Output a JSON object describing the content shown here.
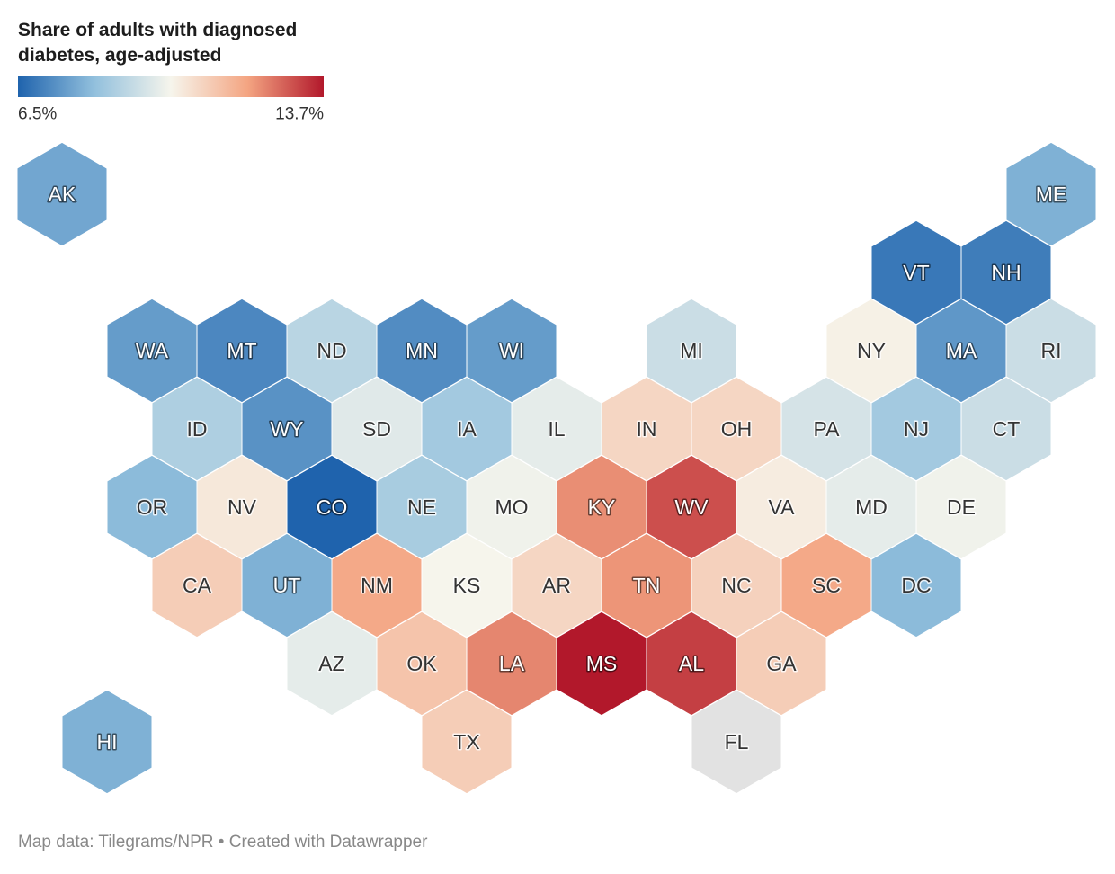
{
  "chart_data": {
    "type": "hex-map",
    "title": "Share of adults with diagnosed diabetes, age-adjusted",
    "footer": "Map data: Tilegrams/NPR • Created with Datawrapper",
    "colorscale": [
      "#1f63ad",
      "#92c0dd",
      "#f6f5ec",
      "#f4a582",
      "#b2182b"
    ],
    "missing_color": "#e2e2e2",
    "colorscale_range": [
      {
        "value": 6.5,
        "label": "6.5%"
      },
      {
        "value": 13.7,
        "label": "13.7%"
      }
    ],
    "states": [
      {
        "name": "AK",
        "value": 7.8
      },
      {
        "name": "ME",
        "value": 8.0
      },
      {
        "name": "VT",
        "value": 6.9
      },
      {
        "name": "NH",
        "value": 7.0
      },
      {
        "name": "WA",
        "value": 7.6
      },
      {
        "name": "MT",
        "value": 7.2
      },
      {
        "name": "ND",
        "value": 9.0
      },
      {
        "name": "MN",
        "value": 7.3
      },
      {
        "name": "WI",
        "value": 7.6
      },
      {
        "name": "MI",
        "value": 9.3
      },
      {
        "name": "NY",
        "value": 10.2
      },
      {
        "name": "MA",
        "value": 7.5
      },
      {
        "name": "RI",
        "value": 9.3
      },
      {
        "name": "ID",
        "value": 8.8
      },
      {
        "name": "WY",
        "value": 7.4
      },
      {
        "name": "SD",
        "value": 9.7
      },
      {
        "name": "IA",
        "value": 8.6
      },
      {
        "name": "IL",
        "value": 9.8
      },
      {
        "name": "IN",
        "value": 10.8
      },
      {
        "name": "OH",
        "value": 10.8
      },
      {
        "name": "PA",
        "value": 9.5
      },
      {
        "name": "NJ",
        "value": 8.6
      },
      {
        "name": "CT",
        "value": 9.3
      },
      {
        "name": "OR",
        "value": 8.2
      },
      {
        "name": "NV",
        "value": 10.4
      },
      {
        "name": "CO",
        "value": 6.5
      },
      {
        "name": "NE",
        "value": 8.7
      },
      {
        "name": "MO",
        "value": 10.0
      },
      {
        "name": "KY",
        "value": 12.2
      },
      {
        "name": "WV",
        "value": 13.0
      },
      {
        "name": "VA",
        "value": 10.3
      },
      {
        "name": "MD",
        "value": 9.8
      },
      {
        "name": "DE",
        "value": 10.0
      },
      {
        "name": "CA",
        "value": 11.0
      },
      {
        "name": "UT",
        "value": 8.0
      },
      {
        "name": "NM",
        "value": 11.8
      },
      {
        "name": "KS",
        "value": 10.1
      },
      {
        "name": "AR",
        "value": 10.8
      },
      {
        "name": "TN",
        "value": 12.1
      },
      {
        "name": "NC",
        "value": 10.9
      },
      {
        "name": "SC",
        "value": 11.8
      },
      {
        "name": "DC",
        "value": 8.2
      },
      {
        "name": "AZ",
        "value": 9.8
      },
      {
        "name": "OK",
        "value": 11.2
      },
      {
        "name": "LA",
        "value": 12.3
      },
      {
        "name": "MS",
        "value": 13.7
      },
      {
        "name": "AL",
        "value": 13.2
      },
      {
        "name": "GA",
        "value": 11.0
      },
      {
        "name": "HI",
        "value": 8.0
      },
      {
        "name": "TX",
        "value": 11.0
      },
      {
        "name": "FL",
        "value": null
      }
    ]
  }
}
